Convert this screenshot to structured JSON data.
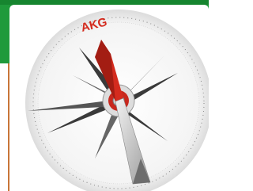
{
  "label": "AKG"
}
